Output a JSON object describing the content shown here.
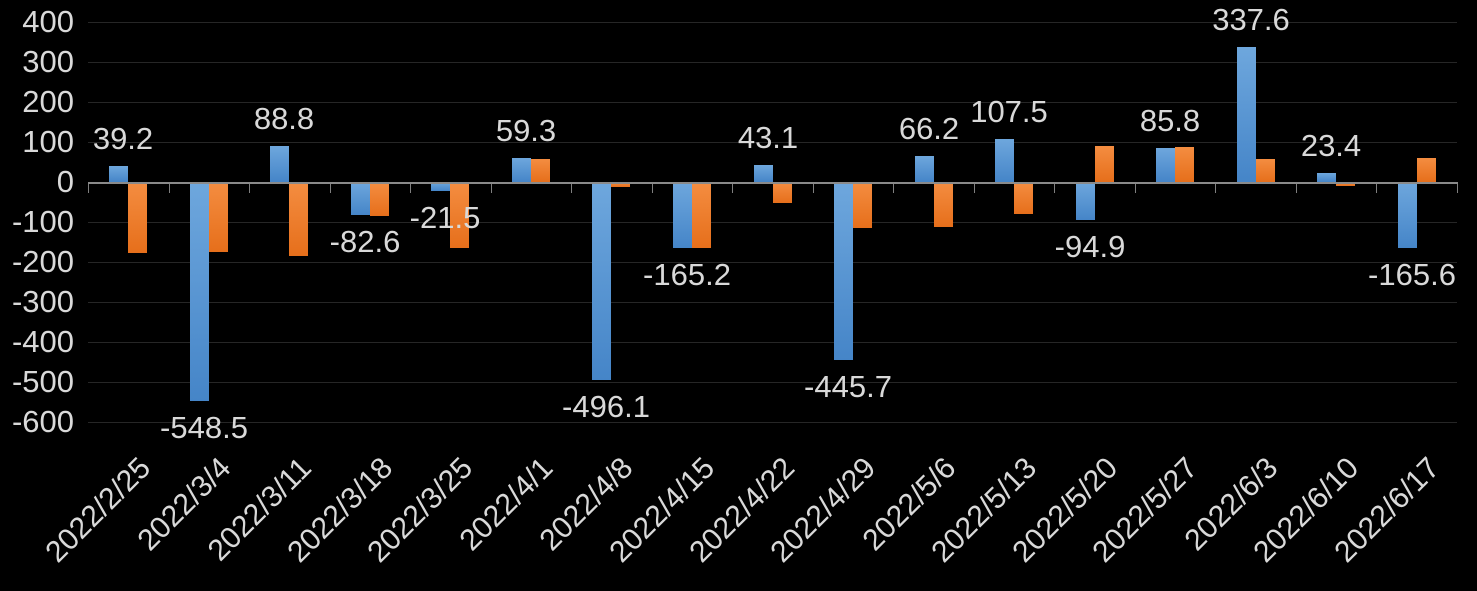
{
  "chart_data": {
    "type": "bar",
    "title": "",
    "xlabel": "",
    "ylabel": "",
    "legend": "none",
    "grid": true,
    "ylim": [
      -600,
      400
    ],
    "ytick_step": 100,
    "yticks": [
      400,
      300,
      200,
      100,
      0,
      -100,
      -200,
      -300,
      -400,
      -500,
      -600
    ],
    "categories": [
      "2022/2/25",
      "2022/3/4",
      "2022/3/11",
      "2022/3/18",
      "2022/3/25",
      "2022/4/1",
      "2022/4/8",
      "2022/4/15",
      "2022/4/22",
      "2022/4/29",
      "2022/5/6",
      "2022/5/13",
      "2022/5/20",
      "2022/5/27",
      "2022/6/3",
      "2022/6/10",
      "2022/6/17"
    ],
    "series": [
      {
        "name": "blue-series",
        "color": "#5B9BD5",
        "values": [
          39.2,
          -548.5,
          88.8,
          -82.6,
          -21.5,
          59.3,
          -496.1,
          -165.2,
          43.1,
          -445.7,
          66.2,
          107.5,
          -94.9,
          85.8,
          337.6,
          23.4,
          -165.6
        ]
      },
      {
        "name": "orange-series",
        "color": "#ED7D31",
        "values": [
          -178,
          -174,
          -185,
          -84,
          -166,
          58,
          -12,
          -166,
          -52,
          -114,
          -113,
          -80,
          90,
          88,
          58,
          -10,
          60
        ]
      }
    ],
    "data_labels": {
      "series": "blue-series",
      "texts": [
        "39.2",
        "-548.5",
        "88.8",
        "-82.6",
        "-21.5",
        "59.3",
        "-496.1",
        "-165.2",
        "43.1",
        "-445.7",
        "66.2",
        "107.5",
        "-94.9",
        "85.8",
        "337.6",
        "23.4",
        "-165.6"
      ]
    },
    "colors": {
      "background": "#000000",
      "text": "#d9d9d9",
      "gridline": "#262626",
      "axis": "#8a8a8a",
      "blue_bar_top": "#6ea7dd",
      "blue_bar_bottom": "#4585c8",
      "orange_bar_top": "#f48d41",
      "orange_bar_bottom": "#e66f1b"
    }
  }
}
